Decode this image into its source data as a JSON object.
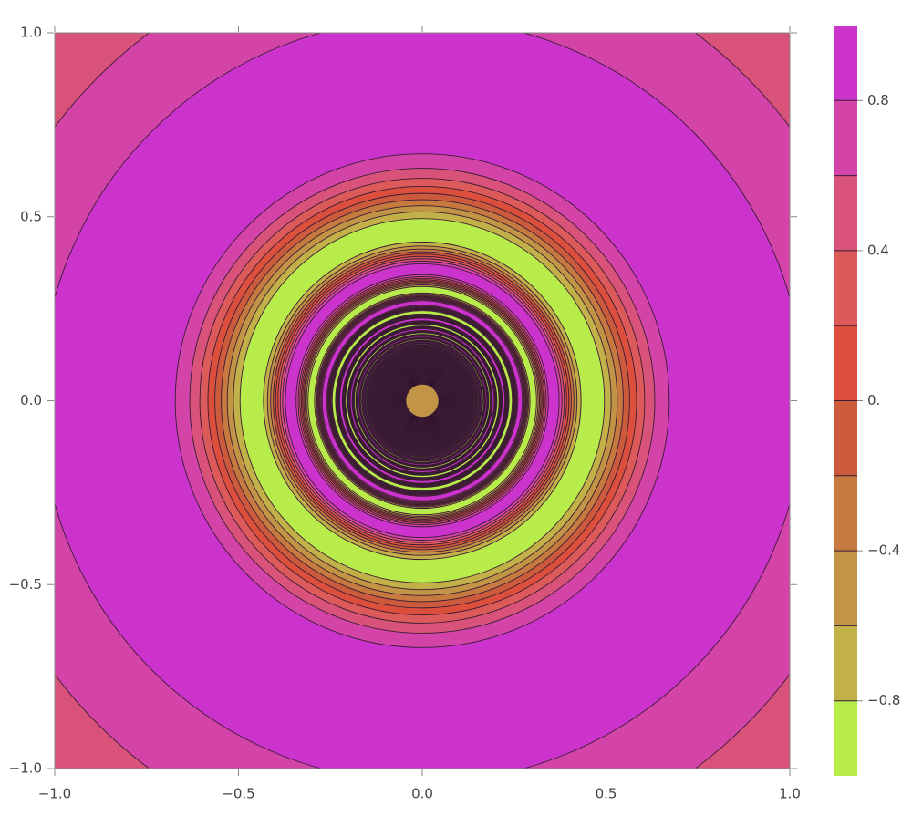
{
  "chart_data": {
    "type": "contour",
    "xlim": [
      -1,
      1
    ],
    "ylim": [
      -1,
      1
    ],
    "xticks": [
      {
        "value": -1,
        "label": "−1.0"
      },
      {
        "value": -0.5,
        "label": "−0.5"
      },
      {
        "value": 0,
        "label": "0.0"
      },
      {
        "value": 0.5,
        "label": "0.5"
      },
      {
        "value": 1,
        "label": "1.0"
      }
    ],
    "yticks": [
      {
        "value": -1,
        "label": "−1.0"
      },
      {
        "value": -0.5,
        "label": "−0.5"
      },
      {
        "value": 0,
        "label": "0.0"
      },
      {
        "value": 0.5,
        "label": "0.5"
      },
      {
        "value": 1,
        "label": "1.0"
      }
    ],
    "clim": [
      -1,
      1
    ],
    "levels": [
      -0.8,
      -0.6,
      -0.4,
      -0.2,
      0,
      0.2,
      0.4,
      0.6,
      0.8
    ],
    "band_colors": [
      "#b8ec4a",
      "#c2b048",
      "#c29446",
      "#c67a40",
      "#cc5a3c",
      "#dc4f3c",
      "#dc5a5a",
      "#d9527a",
      "#d444a8",
      "#cc33cc"
    ],
    "colorbar_ticks": [
      {
        "value": -0.8,
        "label": "−0.8"
      },
      {
        "value": -0.4,
        "label": "−0.4"
      },
      {
        "value": 0,
        "label": "0."
      },
      {
        "value": 0.4,
        "label": "0.4"
      },
      {
        "value": 0.8,
        "label": "0.8"
      }
    ]
  }
}
